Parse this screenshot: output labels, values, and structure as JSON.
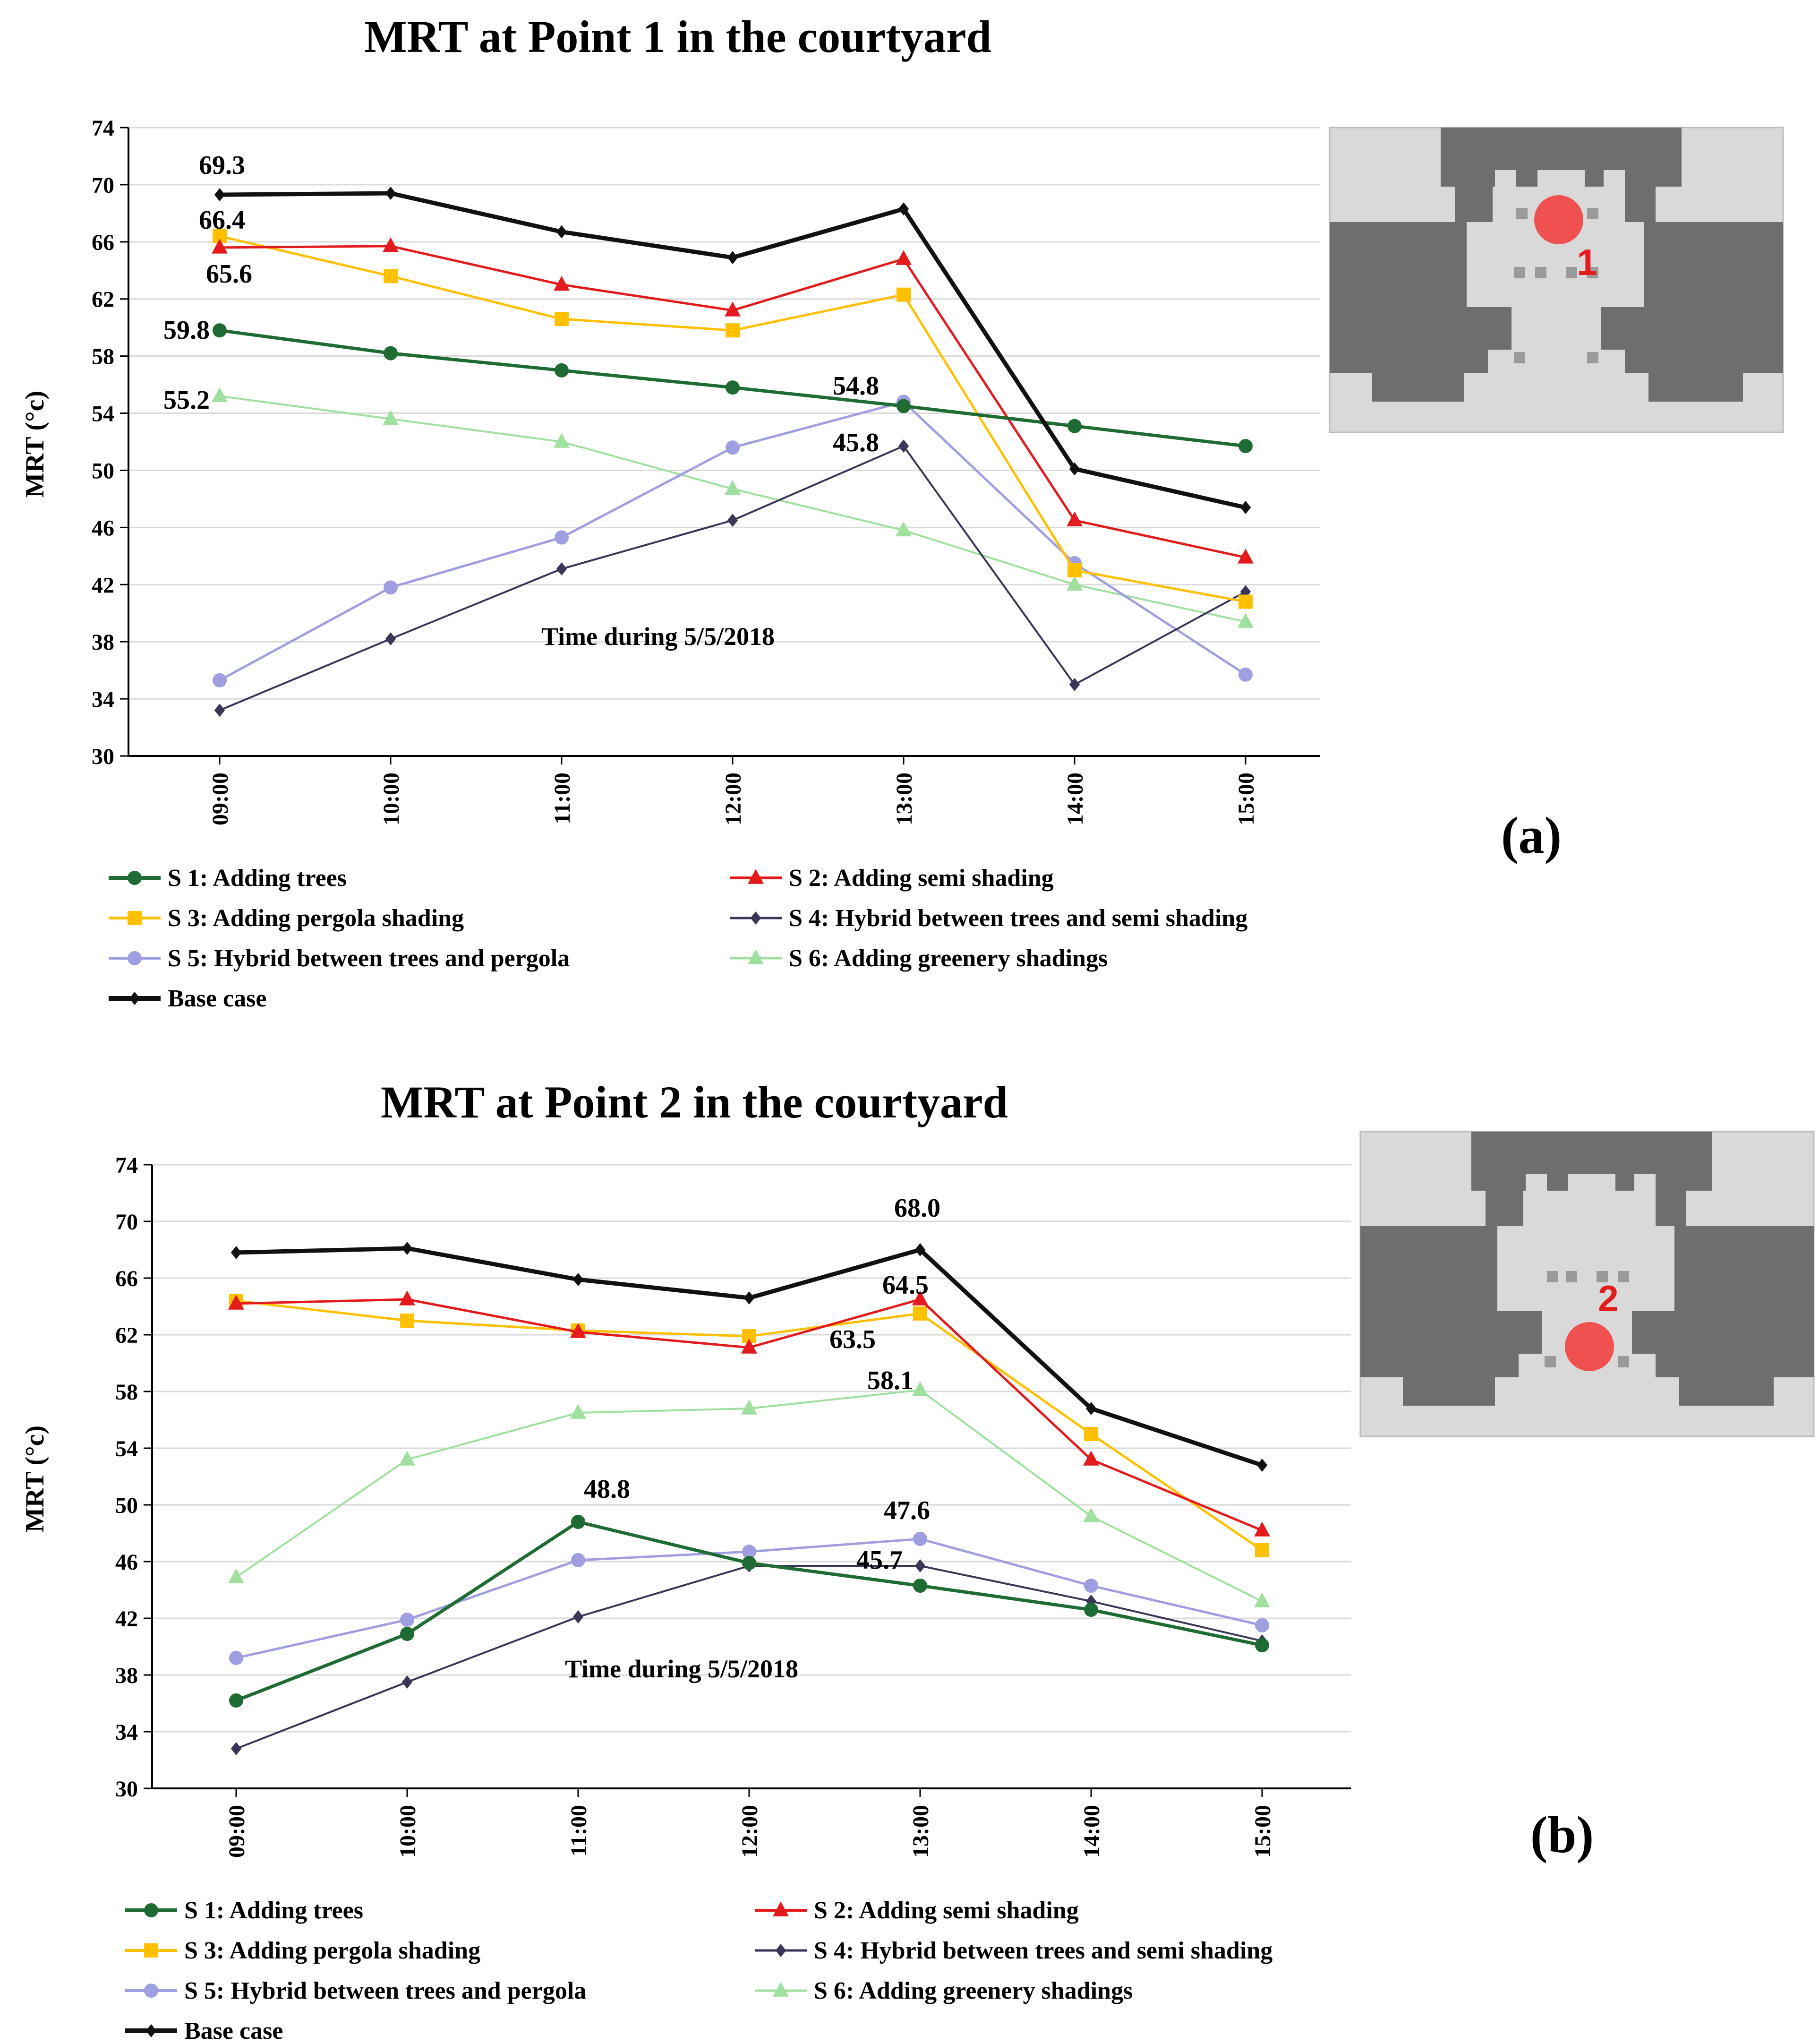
{
  "colors": {
    "s1": "#1e6b33",
    "s2": "#e41a1c",
    "s3": "#ffc000",
    "s4": "#3b3557",
    "s5": "#9e9ee0",
    "s6": "#9fe09f",
    "base": "#111111",
    "map_dark": "#6e6e6e",
    "map_light": "#d9d9d9",
    "marker": "#f05050"
  },
  "chart_data": [
    {
      "id": "a",
      "type": "line",
      "title": "MRT at Point 1 in the courtyard",
      "panel_label": "(a)",
      "xlabel": "",
      "ylabel": "MRT (°c)",
      "ylim": [
        30,
        74
      ],
      "yticks": [
        30,
        34,
        38,
        42,
        46,
        50,
        54,
        58,
        62,
        66,
        70,
        74
      ],
      "grid": true,
      "categories": [
        "09:00",
        "10:00",
        "11:00",
        "12:00",
        "13:00",
        "14:00",
        "15:00"
      ],
      "note": "Time during  5/5/2018",
      "map_point": "1",
      "series": [
        {
          "key": "s1",
          "name": "S 1: Adding trees",
          "marker": "circle",
          "values": [
            59.8,
            58.2,
            57.0,
            55.8,
            54.5,
            53.1,
            51.7
          ]
        },
        {
          "key": "s2",
          "name": "S 2: Adding semi shading",
          "marker": "triangle",
          "values": [
            65.6,
            65.7,
            63.0,
            61.2,
            64.8,
            46.5,
            43.9
          ]
        },
        {
          "key": "s3",
          "name": "S 3: Adding pergola shading",
          "marker": "square",
          "values": [
            66.4,
            63.6,
            60.6,
            59.8,
            62.3,
            43.0,
            40.8
          ]
        },
        {
          "key": "s4",
          "name": "S 4: Hybrid between trees and semi shading",
          "marker": "diamond",
          "values": [
            33.2,
            38.2,
            43.1,
            46.5,
            51.7,
            35.0,
            41.5
          ]
        },
        {
          "key": "s5",
          "name": "S 5: Hybrid between trees and pergola",
          "marker": "circle",
          "values": [
            35.3,
            41.8,
            45.3,
            51.6,
            54.8,
            43.5,
            35.7
          ]
        },
        {
          "key": "s6",
          "name": "S 6: Adding greenery shadings",
          "marker": "triangle",
          "values": [
            55.2,
            53.6,
            52.0,
            48.7,
            45.8,
            42.0,
            39.4
          ]
        },
        {
          "key": "base",
          "name": "Base case",
          "marker": "diamond",
          "values": [
            69.3,
            69.4,
            66.7,
            64.9,
            68.3,
            50.1,
            47.4
          ]
        }
      ],
      "annotations": [
        "69.3",
        "66.4",
        "65.6",
        "59.8",
        "55.2",
        "54.8",
        "45.8"
      ]
    },
    {
      "id": "b",
      "type": "line",
      "title": "MRT at Point 2 in the courtyard",
      "panel_label": "(b)",
      "xlabel": "",
      "ylabel": "MRT (°c)",
      "ylim": [
        30,
        74
      ],
      "yticks": [
        30,
        34,
        38,
        42,
        46,
        50,
        54,
        58,
        62,
        66,
        70,
        74
      ],
      "grid": true,
      "categories": [
        "09:00",
        "10:00",
        "11:00",
        "12:00",
        "13:00",
        "14:00",
        "15:00"
      ],
      "note": "Time during  5/5/2018",
      "map_point": "2",
      "series": [
        {
          "key": "s1",
          "name": "S 1: Adding trees",
          "marker": "circle",
          "values": [
            36.2,
            40.9,
            48.8,
            45.9,
            44.3,
            42.6,
            40.1
          ]
        },
        {
          "key": "s2",
          "name": "S 2: Adding semi shading",
          "marker": "triangle",
          "values": [
            64.2,
            64.5,
            62.2,
            61.1,
            64.5,
            53.2,
            48.2
          ]
        },
        {
          "key": "s3",
          "name": "S 3: Adding pergola shading",
          "marker": "square",
          "values": [
            64.4,
            63.0,
            62.3,
            61.9,
            63.5,
            55.0,
            46.8
          ]
        },
        {
          "key": "s4",
          "name": "S 4: Hybrid between trees and semi shading",
          "marker": "diamond",
          "values": [
            32.8,
            37.5,
            42.1,
            45.7,
            45.7,
            43.2,
            40.4
          ]
        },
        {
          "key": "s5",
          "name": "S 5: Hybrid between trees and pergola",
          "marker": "circle",
          "values": [
            39.2,
            41.9,
            46.1,
            46.7,
            47.6,
            44.3,
            41.5
          ]
        },
        {
          "key": "s6",
          "name": "S 6: Adding greenery shadings",
          "marker": "triangle",
          "values": [
            44.9,
            53.2,
            56.5,
            56.8,
            58.1,
            49.2,
            43.2
          ]
        },
        {
          "key": "base",
          "name": "Base case",
          "marker": "diamond",
          "values": [
            67.8,
            68.1,
            65.9,
            64.6,
            68.0,
            56.8,
            52.8
          ]
        }
      ],
      "annotations": [
        "68.0",
        "64.5",
        "63.5",
        "58.1",
        "48.8",
        "47.6",
        "45.7"
      ]
    }
  ]
}
